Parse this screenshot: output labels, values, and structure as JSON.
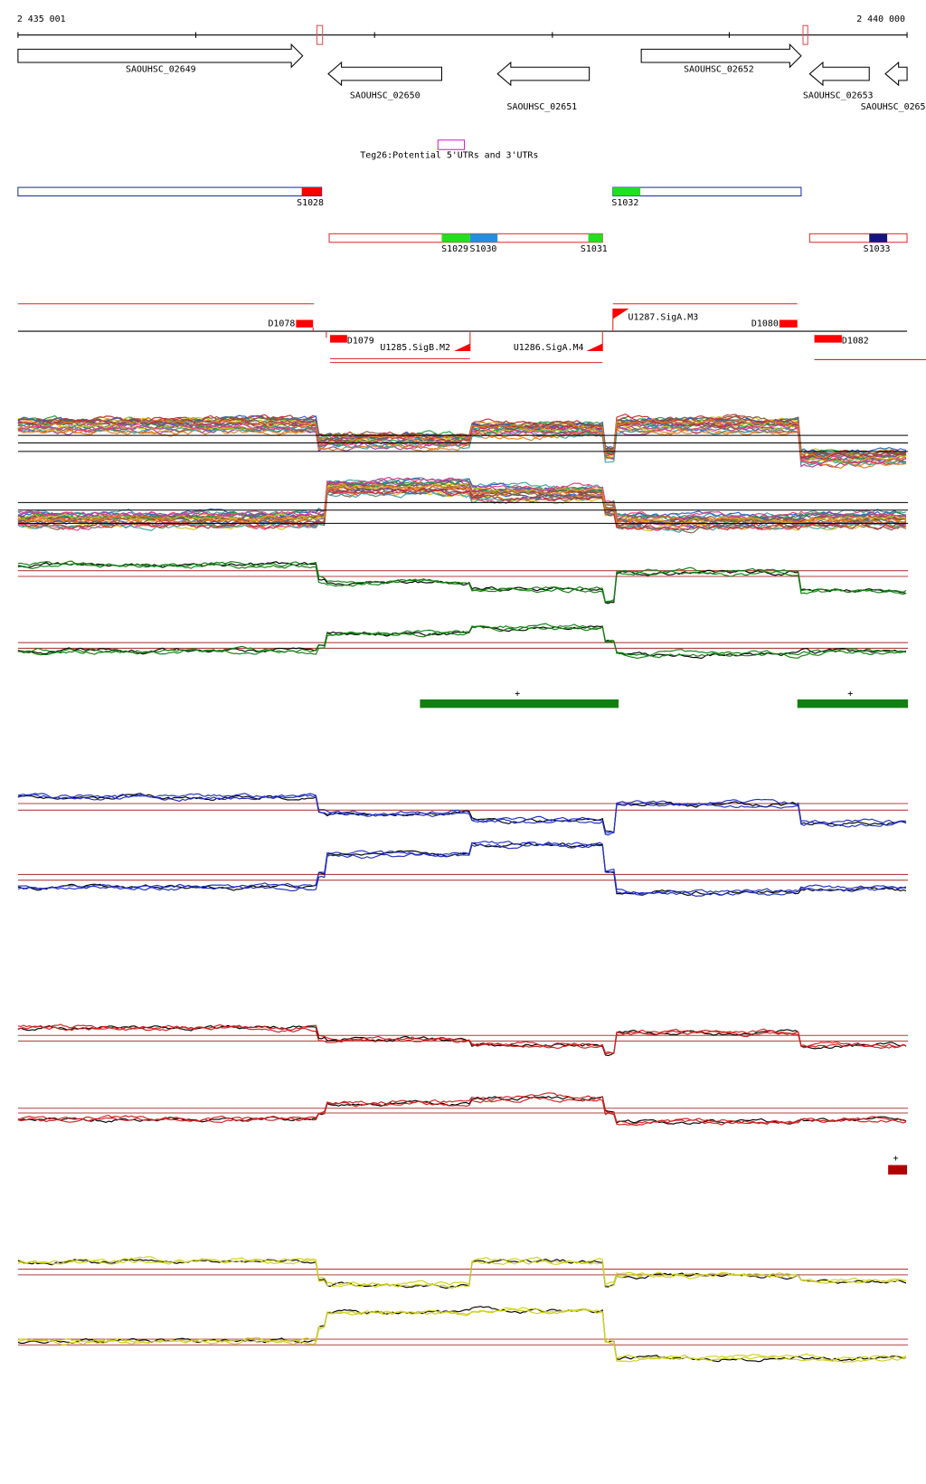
{
  "ruler": {
    "start": "2 435 001",
    "end": "2 440 000"
  },
  "genes": [
    "SAOUHSC_02649",
    "SAOUHSC_02650",
    "SAOUHSC_02651",
    "SAOUHSC_02652",
    "SAOUHSC_02653",
    "SAOUHSC_0265"
  ],
  "track_title": "Teg26:Potential 5'UTRs and 3'UTRs",
  "segments": [
    "S1028",
    "S1032",
    "S1029",
    "S1030",
    "S1031",
    "S1033"
  ],
  "features": [
    "D1078",
    "D1079",
    "U1285.SigB.M2",
    "U1286.SigA.M4",
    "U1287.SigA.M3",
    "D1080",
    "D1082"
  ],
  "markers": [
    "+",
    "+",
    "+"
  ]
}
